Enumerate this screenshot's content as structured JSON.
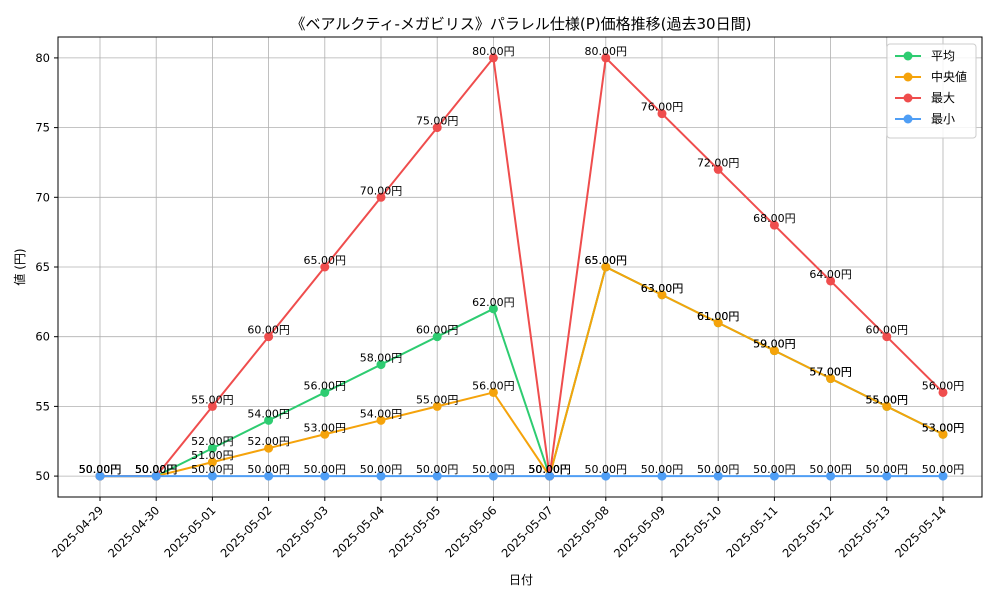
{
  "chart_data": {
    "type": "line",
    "title": "《ベアルクティ-メガビリス》パラレル仕様(P)価格推移(過去30日間)",
    "xlabel": "日付",
    "ylabel": "値 (円)",
    "ylim": [
      48.5,
      81.5
    ],
    "yticks": [
      50,
      55,
      60,
      65,
      70,
      75,
      80
    ],
    "grid": true,
    "legend_position": "top-right",
    "value_suffix": "円",
    "categories": [
      "2025-04-29",
      "2025-04-30",
      "2025-05-01",
      "2025-05-02",
      "2025-05-03",
      "2025-05-04",
      "2025-05-05",
      "2025-05-06",
      "2025-05-07",
      "2025-05-08",
      "2025-05-09",
      "2025-05-10",
      "2025-05-11",
      "2025-05-12",
      "2025-05-13",
      "2025-05-14"
    ],
    "series": [
      {
        "name": "平均",
        "color": "#2ecc71",
        "values": [
          50,
          50,
          52,
          54,
          56,
          58,
          60,
          62,
          50,
          65,
          63,
          61,
          59,
          57,
          55,
          53
        ]
      },
      {
        "name": "中央値",
        "color": "#f5a30b",
        "values": [
          50,
          50,
          51,
          52,
          53,
          54,
          55,
          56,
          50,
          65,
          63,
          61,
          59,
          57,
          55,
          53
        ]
      },
      {
        "name": "最大",
        "color": "#ef4d4d",
        "values": [
          50,
          50,
          55,
          60,
          65,
          70,
          75,
          80,
          50,
          80,
          76,
          72,
          68,
          64,
          60,
          56
        ]
      },
      {
        "name": "最小",
        "color": "#4f9ef5",
        "values": [
          50,
          50,
          50,
          50,
          50,
          50,
          50,
          50,
          50,
          50,
          50,
          50,
          50,
          50,
          50,
          50
        ]
      }
    ]
  }
}
